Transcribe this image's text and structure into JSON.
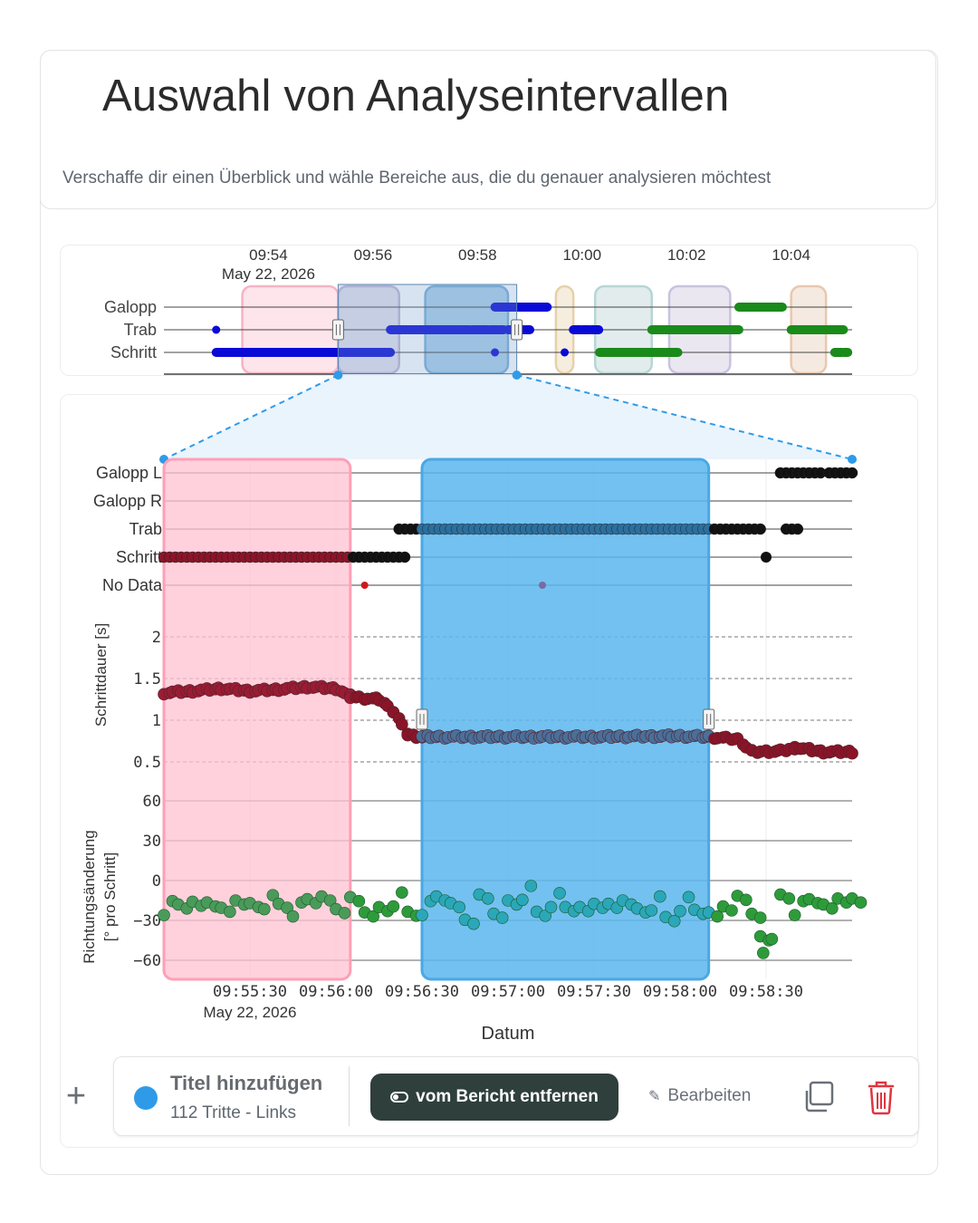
{
  "header": {
    "title": "Auswahl von Analyseintervallen",
    "subtitle": "Verschaffe dir einen Überblick und wähle Bereiche aus, die du genauer analysieren möchtest"
  },
  "colors": {
    "schritt_blue": "#0a0ad6",
    "trab_blue": "#1212c8",
    "green": "#1a8a1a",
    "dark_red": "#8b1428",
    "black": "#111111",
    "selection_pink": "#ffc9d6",
    "selection_blue": "#5bb6ee",
    "teal_points": "#2aa7b8",
    "green_points": "#2e9b3a",
    "accent": "#2f9be8",
    "remove_button_bg": "#2f3f3b",
    "trash_red": "#e03540"
  },
  "chart_data": [
    {
      "id": "overview",
      "type": "scatter",
      "x_tick_labels": [
        "09:54",
        "09:56",
        "09:58",
        "10:00",
        "10:02",
        "10:04"
      ],
      "x_sub_label": "May 22, 2026",
      "categories": [
        "Galopp",
        "Trab",
        "Schritt"
      ],
      "selected_range": [
        "09:55:20",
        "09:58:45"
      ],
      "intervals": [
        {
          "start": "09:53:30",
          "end": "09:55:20",
          "color": "pink"
        },
        {
          "start": "09:55:20",
          "end": "09:56:30",
          "color": "purple"
        },
        {
          "start": "09:57:00",
          "end": "09:58:35",
          "color": "blue"
        },
        {
          "start": "09:59:30",
          "end": "09:59:50",
          "color": "tan"
        },
        {
          "start": "10:00:15",
          "end": "10:01:20",
          "color": "teal"
        },
        {
          "start": "10:01:40",
          "end": "10:02:50",
          "color": "lavender"
        },
        {
          "start": "10:04:00",
          "end": "10:04:40",
          "color": "peach"
        }
      ],
      "series": [
        {
          "name": "Galopp",
          "segments": [
            [
              "09:58:20",
              "09:59:20",
              "blue"
            ],
            [
              "10:03:00",
              "10:03:50",
              "green"
            ]
          ]
        },
        {
          "name": "Trab",
          "segments": [
            [
              "09:53:00",
              "09:53:05",
              "blue"
            ],
            [
              "09:56:20",
              "09:58:30",
              "blue"
            ],
            [
              "09:58:35",
              "09:59:00",
              "blue"
            ],
            [
              "09:59:50",
              "10:00:20",
              "blue"
            ],
            [
              "10:01:20",
              "10:03:00",
              "green"
            ],
            [
              "10:04:00",
              "10:05:00",
              "green"
            ]
          ]
        },
        {
          "name": "Schritt",
          "segments": [
            [
              "09:53:00",
              "09:56:20",
              "blue"
            ],
            [
              "09:58:20",
              "09:58:25",
              "blue"
            ],
            [
              "09:59:40",
              "09:59:45",
              "blue"
            ],
            [
              "10:00:20",
              "10:01:50",
              "green"
            ],
            [
              "10:04:50",
              "10:05:05",
              "green"
            ]
          ]
        }
      ]
    },
    {
      "id": "gait",
      "type": "scatter",
      "categories": [
        "Galopp L",
        "Galopp R",
        "Trab",
        "Schritt",
        "No Data"
      ],
      "selections": [
        {
          "start": "09:55:00",
          "end": "09:56:05",
          "color": "pink"
        },
        {
          "start": "09:56:30",
          "end": "09:58:10",
          "color": "blue"
        }
      ],
      "series": [
        {
          "name": "Galopp L",
          "segments": [
            [
              "09:58:35",
              "09:58:50"
            ],
            [
              "09:58:52",
              "09:59:00"
            ]
          ]
        },
        {
          "name": "Trab",
          "segments": [
            [
              "09:56:22",
              "09:58:28"
            ],
            [
              "09:58:37",
              "09:58:42"
            ]
          ]
        },
        {
          "name": "Schritt",
          "segments": [
            [
              "09:55:00",
              "09:56:25"
            ]
          ],
          "points": [
            "09:58:30"
          ]
        },
        {
          "name": "No Data",
          "points": [
            "09:56:10",
            "09:57:12"
          ]
        }
      ]
    },
    {
      "id": "schrittdauer",
      "type": "scatter",
      "ylabel": "Schrittdauer [s]",
      "y_ticks": [
        0.5,
        1,
        1.5,
        2
      ],
      "ylim": [
        0.3,
        2.2
      ],
      "x_range": [
        "09:55:00",
        "09:59:00"
      ],
      "points": [
        [
          "09:55:00",
          1.33
        ],
        [
          "09:55:10",
          1.35
        ],
        [
          "09:55:20",
          1.38
        ],
        [
          "09:55:30",
          1.35
        ],
        [
          "09:55:40",
          1.37
        ],
        [
          "09:55:50",
          1.4
        ],
        [
          "09:56:00",
          1.38
        ],
        [
          "09:56:05",
          1.28
        ],
        [
          "09:56:15",
          1.25
        ],
        [
          "09:56:20",
          1.1
        ],
        [
          "09:56:25",
          0.82
        ],
        [
          "09:56:30",
          0.8
        ],
        [
          "09:57:00",
          0.8
        ],
        [
          "09:57:30",
          0.8
        ],
        [
          "09:58:00",
          0.81
        ],
        [
          "09:58:10",
          0.8
        ],
        [
          "09:58:20",
          0.77
        ],
        [
          "09:58:25",
          0.62
        ],
        [
          "09:58:35",
          0.63
        ],
        [
          "09:58:40",
          0.67
        ],
        [
          "09:58:50",
          0.62
        ],
        [
          "09:59:00",
          0.62
        ]
      ]
    },
    {
      "id": "richtung",
      "type": "scatter",
      "ylabel": "Richtungsänderung [° pro Schritt]",
      "y_ticks": [
        -60,
        -30,
        0,
        30,
        60
      ],
      "ylim": [
        -75,
        65
      ],
      "x_range": [
        "09:55:00",
        "09:59:00"
      ],
      "x_tick_labels": [
        "09:55:30",
        "09:56:00",
        "09:56:30",
        "09:57:00",
        "09:57:30",
        "09:58:00",
        "09:58:30"
      ],
      "x_sub_label": "May 22, 2026",
      "xlabel": "Datum",
      "points": [
        [
          "09:55:00",
          -20
        ],
        [
          "09:55:05",
          -18
        ],
        [
          "09:55:10",
          -22
        ],
        [
          "09:55:15",
          -15
        ],
        [
          "09:55:20",
          -25
        ],
        [
          "09:55:25",
          -12
        ],
        [
          "09:55:30",
          -20
        ],
        [
          "09:55:35",
          -17
        ],
        [
          "09:55:40",
          -19
        ],
        [
          "09:55:45",
          -21
        ],
        [
          "09:55:50",
          -14
        ],
        [
          "09:55:55",
          -18
        ],
        [
          "09:56:00",
          -20
        ],
        [
          "09:56:05",
          -17
        ],
        [
          "09:56:10",
          -21
        ],
        [
          "09:56:15",
          -23
        ],
        [
          "09:56:20",
          -15
        ],
        [
          "09:56:25",
          -25
        ],
        [
          "09:56:30",
          -20
        ],
        [
          "09:56:35",
          -12
        ],
        [
          "09:56:40",
          -23
        ],
        [
          "09:56:45",
          -28
        ],
        [
          "09:56:50",
          -15
        ],
        [
          "09:56:55",
          -22
        ],
        [
          "09:57:00",
          -18
        ],
        [
          "09:57:05",
          -10
        ],
        [
          "09:57:10",
          -25
        ],
        [
          "09:57:15",
          -14
        ],
        [
          "09:57:20",
          -20
        ],
        [
          "09:57:25",
          -26
        ],
        [
          "09:57:30",
          -16
        ],
        [
          "09:57:35",
          -22
        ],
        [
          "09:57:40",
          -12
        ],
        [
          "09:57:45",
          -24
        ],
        [
          "09:57:50",
          -18
        ],
        [
          "09:57:55",
          -29
        ],
        [
          "09:58:00",
          -17
        ],
        [
          "09:58:05",
          -22
        ],
        [
          "09:58:10",
          -30
        ],
        [
          "09:58:15",
          -18
        ],
        [
          "09:58:20",
          -16
        ],
        [
          "09:58:25",
          -22
        ],
        [
          "09:58:28",
          -45
        ],
        [
          "09:58:29",
          -50
        ],
        [
          "09:58:35",
          -12
        ],
        [
          "09:58:40",
          -20
        ],
        [
          "09:58:45",
          -14
        ],
        [
          "09:58:50",
          -24
        ],
        [
          "09:58:55",
          -12
        ],
        [
          "09:59:00",
          -18
        ]
      ]
    }
  ],
  "footer": {
    "add_label": "+",
    "item_title": "Titel hinzufügen",
    "item_subtitle": "112 Tritte - Links",
    "remove_label": "vom Bericht entfernen",
    "edit_label": "Bearbeiten"
  }
}
